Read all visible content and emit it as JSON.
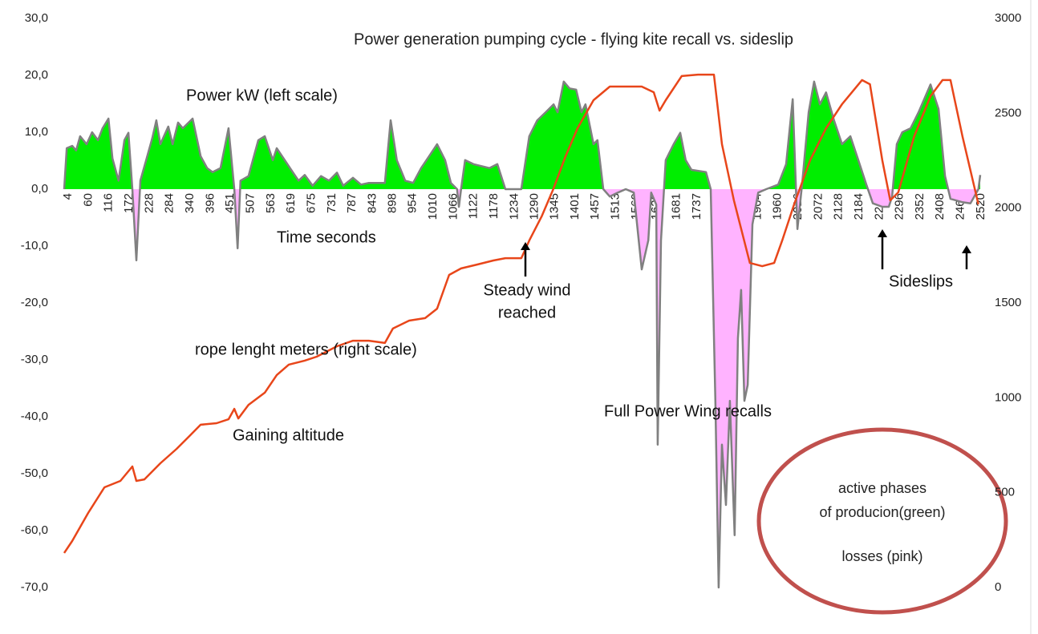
{
  "chart_data": {
    "type": "area-line",
    "title": "Power generation pumping cycle - flying kite recall vs. sideslip",
    "annotations": [
      "Power kW (left scale)",
      "Time seconds",
      "Steady wind",
      "reached",
      "rope lenght meters (right scale)",
      "Gaining altitude",
      "Full Power Wing recalls",
      "Sideslips",
      "active phases",
      "of producion(green)",
      "losses (pink)"
    ],
    "positive_color": "#00ee00",
    "negative_color": "#ffb3ff",
    "series": [
      {
        "name": "Power kW (left scale)",
        "color": "#808080",
        "axis": "y",
        "x": [
          4,
          11,
          26,
          37,
          48,
          66,
          81,
          97,
          110,
          126,
          137,
          154,
          170,
          181,
          192,
          203,
          214,
          230,
          247,
          258,
          269,
          291,
          303,
          318,
          331,
          358,
          380,
          398,
          413,
          435,
          457,
          473,
          482,
          490,
          512,
          524,
          539,
          557,
          579,
          590,
          612,
          634,
          650,
          667,
          689,
          712,
          734,
          756,
          773,
          800,
          822,
          844,
          888,
          904,
          921,
          944,
          966,
          988,
          1010,
          1032,
          1054,
          1070,
          1087,
          1092,
          1098,
          1109,
          1132,
          1176,
          1198,
          1220,
          1264,
          1286,
          1308,
          1331,
          1353,
          1364,
          1381,
          1397,
          1415,
          1430,
          1441,
          1463,
          1474,
          1490,
          1508,
          1530,
          1552,
          1574,
          1596,
          1614,
          1622,
          1636,
          1640,
          1649,
          1662,
          1684,
          1702,
          1717,
          1733,
          1773,
          1786,
          1799,
          1808,
          1817,
          1828,
          1839,
          1852,
          1861,
          1870,
          1879,
          1888,
          1901,
          1917,
          1939,
          1972,
          1994,
          2012,
          2025,
          2038,
          2056,
          2071,
          2087,
          2104,
          2126,
          2148,
          2171,
          2193,
          2215,
          2233,
          2259,
          2277,
          2286,
          2299,
          2314,
          2337,
          2359,
          2392,
          2414,
          2432,
          2447,
          2480,
          2502,
          2524,
          2529
        ],
        "values": [
          0,
          7.2,
          7.6,
          6.8,
          9.3,
          7.9,
          10.0,
          8.6,
          10.7,
          12.4,
          5.4,
          1.5,
          8.6,
          9.9,
          0,
          -12.5,
          1.5,
          5.1,
          9.0,
          12.1,
          7.9,
          11.0,
          7.9,
          11.7,
          10.7,
          12.4,
          5.8,
          3.7,
          3.0,
          3.7,
          10.7,
          0,
          -10.4,
          1.5,
          2.3,
          5.1,
          8.6,
          9.3,
          5.1,
          7.2,
          5.1,
          3.0,
          1.5,
          2.5,
          0.6,
          2.3,
          1.5,
          2.9,
          0.6,
          2.0,
          0.8,
          1.1,
          1.1,
          12.1,
          5.1,
          1.5,
          1.1,
          3.7,
          5.8,
          7.9,
          5.1,
          1.1,
          0,
          -3.1,
          0,
          5.1,
          4.4,
          3.7,
          4.4,
          0,
          0,
          9.3,
          12.1,
          13.5,
          14.9,
          13.5,
          18.9,
          17.7,
          17.5,
          13.5,
          14.9,
          7.9,
          8.6,
          0,
          -1.3,
          -0.6,
          0,
          -0.6,
          -14.1,
          -9.0,
          -0.6,
          -2.7,
          -44.9,
          -9.0,
          5.1,
          7.9,
          9.9,
          5.1,
          3.4,
          3.0,
          0,
          -37.2,
          -70,
          -44.9,
          -55.5,
          -37.2,
          -60.8,
          -26.2,
          -17.7,
          -37.2,
          -34.4,
          -6.2,
          -0.6,
          0,
          0.8,
          4.4,
          15.8,
          -7.0,
          0.8,
          13.5,
          18.9,
          14.9,
          17.0,
          12.1,
          7.9,
          9.3,
          5.1,
          0.8,
          -2.5,
          -3.1,
          -3.1,
          -1.3,
          7.9,
          10.0,
          10.7,
          13.5,
          18.4,
          14.1,
          2.3,
          -1.7,
          -2.3,
          -2.5,
          0,
          2.5
        ]
      },
      {
        "name": "rope lenght meters (right scale)",
        "color": "#e8461a",
        "axis": "y2",
        "x": [
          4,
          26,
          70,
          115,
          159,
          192,
          203,
          225,
          269,
          314,
          347,
          380,
          424,
          457,
          473,
          484,
          512,
          557,
          590,
          623,
          667,
          700,
          756,
          800,
          844,
          888,
          910,
          955,
          999,
          1032,
          1065,
          1098,
          1143,
          1187,
          1220,
          1264,
          1286,
          1320,
          1353,
          1386,
          1419,
          1463,
          1508,
          1596,
          1629,
          1645,
          1662,
          1706,
          1751,
          1795,
          1817,
          1850,
          1894,
          1928,
          1961,
          1983,
          2016,
          2060,
          2104,
          2148,
          2203,
          2225,
          2259,
          2281,
          2303,
          2347,
          2392,
          2425,
          2447,
          2480,
          2524
        ],
        "values": [
          182,
          245,
          393,
          528,
          562,
          638,
          562,
          570,
          655,
          731,
          794,
          858,
          866,
          887,
          942,
          891,
          963,
          1027,
          1120,
          1175,
          1196,
          1217,
          1272,
          1301,
          1301,
          1289,
          1365,
          1407,
          1420,
          1470,
          1648,
          1682,
          1703,
          1724,
          1736,
          1736,
          1829,
          1956,
          2104,
          2273,
          2421,
          2569,
          2641,
          2641,
          2611,
          2514,
          2569,
          2696,
          2704,
          2704,
          2337,
          2041,
          1711,
          1694,
          1711,
          1829,
          2020,
          2252,
          2421,
          2548,
          2675,
          2653,
          2252,
          2041,
          2083,
          2379,
          2590,
          2675,
          2675,
          2379,
          2020
        ]
      }
    ],
    "xlim": [
      4,
      2529
    ],
    "xticks": [
      4,
      60,
      116,
      172,
      228,
      284,
      340,
      396,
      451,
      507,
      563,
      619,
      675,
      731,
      787,
      843,
      898,
      954,
      1010,
      1066,
      1122,
      1178,
      1234,
      1290,
      1345,
      1401,
      1457,
      1513,
      1569,
      1625,
      1681,
      1737,
      1792,
      1848,
      1904,
      1960,
      2016,
      2072,
      2128,
      2184,
      2240,
      2296,
      2352,
      2408,
      2464,
      2520
    ],
    "ylim": [
      -70,
      30
    ],
    "yticks": [
      {
        "value": -70,
        "label": "-70,0"
      },
      {
        "value": -60,
        "label": "-60,0"
      },
      {
        "value": -50,
        "label": "-50,0"
      },
      {
        "value": -40,
        "label": "-40,0"
      },
      {
        "value": -30,
        "label": "-30,0"
      },
      {
        "value": -20,
        "label": "-20,0"
      },
      {
        "value": -10,
        "label": "-10,0"
      },
      {
        "value": 0,
        "label": "0,0"
      },
      {
        "value": 10,
        "label": "10,0"
      },
      {
        "value": 20,
        "label": "20,0"
      },
      {
        "value": 30,
        "label": "30,0"
      }
    ],
    "y2lim": [
      0,
      3000
    ],
    "y2ticks": [
      0,
      500,
      1000,
      1500,
      2000,
      2500,
      3000
    ]
  }
}
